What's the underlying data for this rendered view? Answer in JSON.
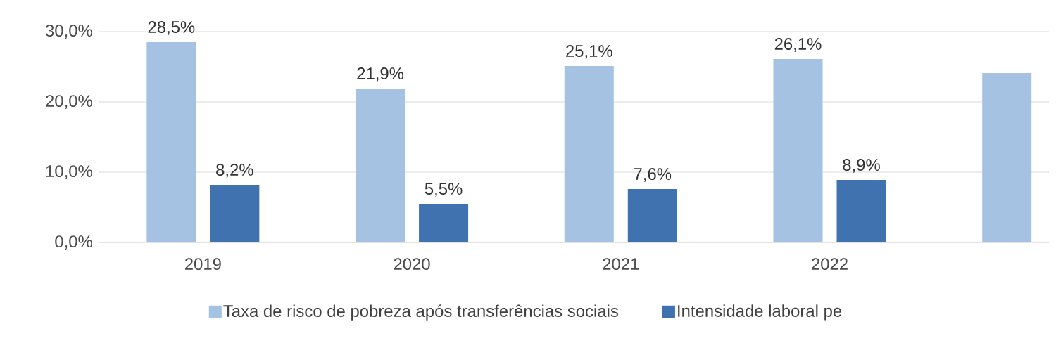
{
  "chart_data": {
    "type": "bar",
    "categories": [
      "2019",
      "2020",
      "2021",
      "2022",
      null
    ],
    "series": [
      {
        "name": "Taxa de risco de pobreza após transferências sociais",
        "color": "#a5c2e2",
        "values": [
          28.5,
          21.9,
          25.1,
          26.1,
          24.1
        ],
        "value_labels": [
          "28,5%",
          "21,9%",
          "25,1%",
          "26,1%",
          null
        ]
      },
      {
        "name": "Intensidade laboral pe",
        "color": "#4172b0",
        "values": [
          8.2,
          5.5,
          7.6,
          8.9,
          null
        ],
        "value_labels": [
          "8,2%",
          "5,5%",
          "7,6%",
          "8,9%",
          null
        ]
      }
    ],
    "ylim": [
      0,
      30
    ],
    "yticks": [
      {
        "value": 0,
        "label": "0,0%"
      },
      {
        "value": 10,
        "label": "10,0%"
      },
      {
        "value": 20,
        "label": "20,0%"
      },
      {
        "value": 30,
        "label": "30,0%"
      }
    ],
    "grid": "y",
    "legend": "bottom"
  }
}
